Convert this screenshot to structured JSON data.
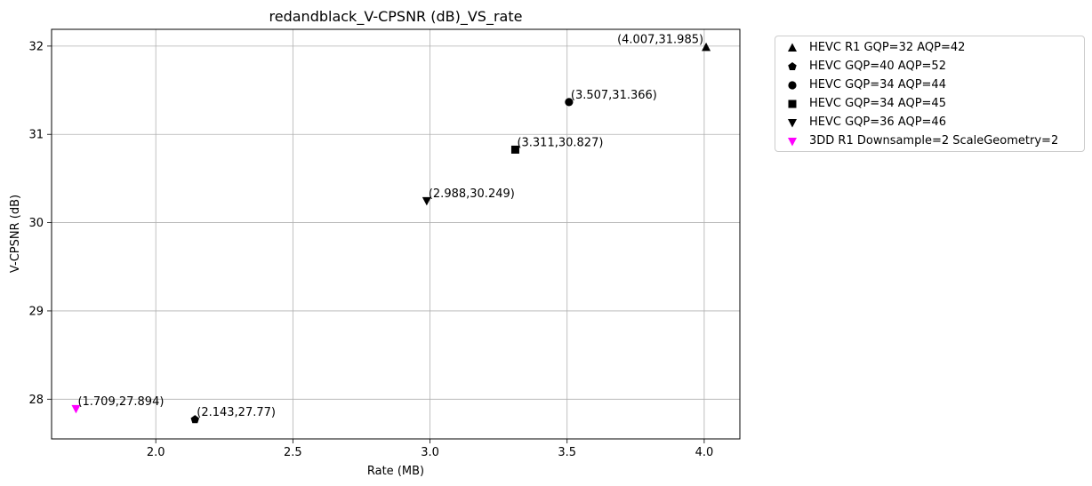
{
  "chart_data": {
    "type": "scatter",
    "title": "redandblack_V-CPSNR (dB)_VS_rate",
    "xlabel": "Rate (MB)",
    "ylabel": "V-CPSNR (dB)",
    "xlim": [
      1.62,
      4.13
    ],
    "ylim": [
      27.55,
      32.19
    ],
    "xticks": [
      "2.0",
      "2.5",
      "3.0",
      "3.5",
      "4.0"
    ],
    "yticks": [
      "28",
      "29",
      "30",
      "31",
      "32"
    ],
    "grid": true,
    "legend_position": "outside-top-right",
    "series": [
      {
        "name": "HEVC R1 GQP=32 AQP=42",
        "marker": "triangle-up",
        "color": "#000000",
        "points": [
          {
            "x": 4.007,
            "y": 31.985,
            "label": "(4.007,31.985)"
          }
        ]
      },
      {
        "name": "HEVC GQP=40 AQP=52",
        "marker": "pentagon",
        "color": "#000000",
        "points": [
          {
            "x": 2.143,
            "y": 27.77,
            "label": "(2.143,27.77)"
          }
        ]
      },
      {
        "name": "HEVC GQP=34 AQP=44",
        "marker": "circle",
        "color": "#000000",
        "points": [
          {
            "x": 3.507,
            "y": 31.366,
            "label": "(3.507,31.366)"
          }
        ]
      },
      {
        "name": "HEVC GQP=34 AQP=45",
        "marker": "square",
        "color": "#000000",
        "points": [
          {
            "x": 3.311,
            "y": 30.827,
            "label": "(3.311,30.827)"
          }
        ]
      },
      {
        "name": "HEVC GQP=36 AQP=46",
        "marker": "triangle-down",
        "color": "#000000",
        "points": [
          {
            "x": 2.988,
            "y": 30.249,
            "label": "(2.988,30.249)"
          }
        ]
      },
      {
        "name": "3DD R1 Downsample=2 ScaleGeometry=2",
        "marker": "triangle-down",
        "color": "#ff00ff",
        "points": [
          {
            "x": 1.709,
            "y": 27.894,
            "label": "(1.709,27.894)"
          }
        ]
      }
    ]
  }
}
